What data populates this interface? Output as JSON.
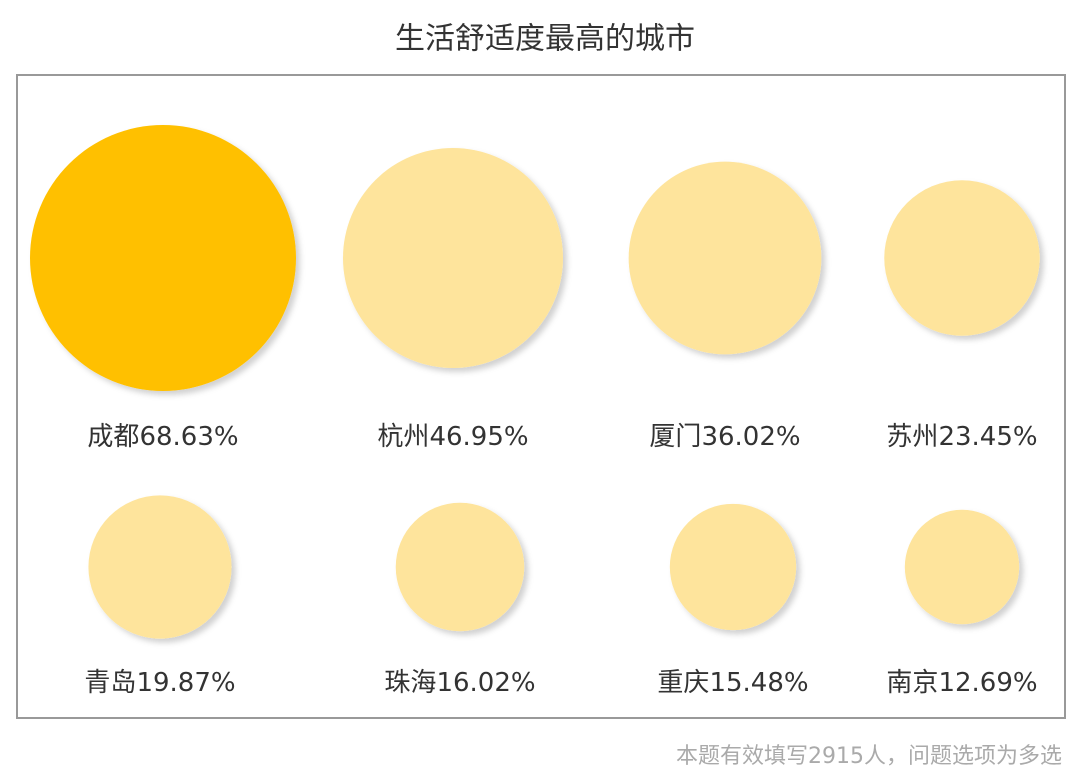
{
  "chart_data": {
    "type": "bubble",
    "title": "生活舒适度最高的城市",
    "categories": [
      "成都",
      "杭州",
      "厦门",
      "苏州",
      "青岛",
      "珠海",
      "重庆",
      "南京"
    ],
    "values": [
      68.63,
      46.95,
      36.02,
      23.45,
      19.87,
      16.02,
      15.48,
      12.69
    ],
    "value_labels": [
      "68.63%",
      "46.95%",
      "36.02%",
      "23.45%",
      "19.87%",
      "16.02%",
      "15.48%",
      "12.69%"
    ],
    "colors": [
      "#ffc000",
      "#fee49c",
      "#fee49c",
      "#fee49c",
      "#fee49c",
      "#fee49c",
      "#fee49c",
      "#fee49c"
    ],
    "note": "本题有效填写2915人，问题选项为多选"
  }
}
